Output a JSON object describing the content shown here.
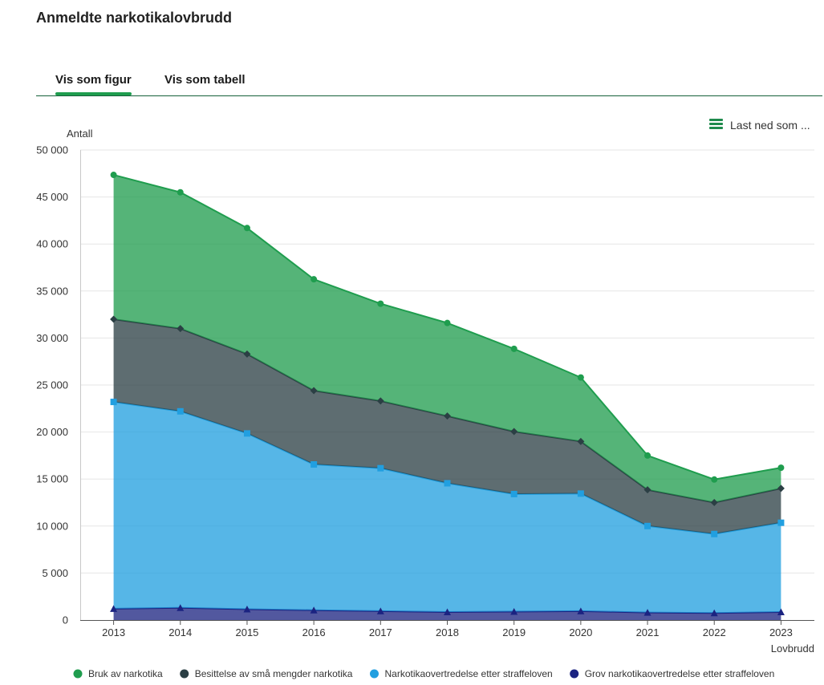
{
  "tabs": [
    {
      "label": "Vis som figur",
      "active": true
    },
    {
      "label": "Vis som tabell",
      "active": false
    }
  ],
  "menu": {
    "label": "Last ned som ...",
    "icon": "menu-icon"
  },
  "chart_data": {
    "type": "area",
    "stacked": true,
    "title": "Anmeldte narkotikalovbrudd",
    "ylabel": "Antall",
    "xlabel": "Lovbrudd",
    "categories": [
      "2013",
      "2014",
      "2015",
      "2016",
      "2017",
      "2018",
      "2019",
      "2020",
      "2021",
      "2022",
      "2023"
    ],
    "ylim": [
      0,
      50000
    ],
    "yticks": [
      0,
      5000,
      10000,
      15000,
      20000,
      25000,
      30000,
      35000,
      40000,
      45000,
      50000
    ],
    "ytick_labels": [
      "0",
      "5 000",
      "10 000",
      "15 000",
      "20 000",
      "25 000",
      "30 000",
      "35 000",
      "40 000",
      "45 000",
      "50 000"
    ],
    "grid": true,
    "legend_position": "bottom",
    "series": [
      {
        "name": "Bruk av narkotika",
        "color": "#1f9d4e",
        "marker": "circle",
        "values": [
          15350,
          14500,
          13400,
          11850,
          10350,
          9900,
          8800,
          6800,
          3650,
          2450,
          2200
        ]
      },
      {
        "name": "Besittelse av små mengder narkotika",
        "color": "#2b3f44",
        "marker": "diamond",
        "values": [
          8800,
          8800,
          8450,
          7850,
          7150,
          7150,
          6650,
          5550,
          3850,
          3350,
          3650
        ]
      },
      {
        "name": "Narkotikaovertredelse etter straffeloven",
        "color": "#219fe0",
        "marker": "square",
        "values": [
          22000,
          20900,
          18700,
          15500,
          15200,
          13700,
          12500,
          12500,
          9200,
          8400,
          9500
        ]
      },
      {
        "name": "Grov narkotikaovertredelse etter straffeloven",
        "color": "#1b2381",
        "marker": "triangle",
        "values": [
          1200,
          1300,
          1150,
          1050,
          950,
          850,
          900,
          950,
          800,
          750,
          850
        ]
      }
    ]
  }
}
